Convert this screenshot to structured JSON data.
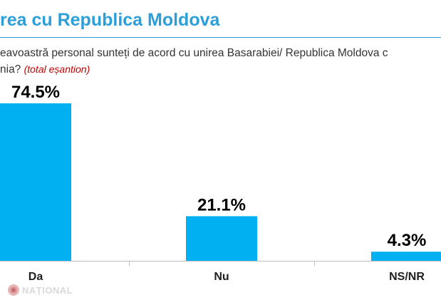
{
  "header": {
    "title": "rea cu Republica Moldova",
    "question_line1": "eavoastră personal sunteți de acord cu unirea Basarabiei/ Republica Moldova c",
    "question_line2": "nia?",
    "question_note": "(total eșantion)"
  },
  "watermark": {
    "text": "NAȚIONAL"
  },
  "colors": {
    "bar": "#00b0f0",
    "title": "#2d9fd8",
    "axis": "#bfbfbf",
    "note": "#c00000"
  },
  "chart_data": {
    "type": "bar",
    "categories": [
      "Da",
      "Nu",
      "NS/NR"
    ],
    "values": [
      74.5,
      21.1,
      4.3
    ],
    "data_labels": [
      "74.5%",
      "21.1%",
      "4.3%"
    ],
    "ylim": [
      0,
      74.5
    ],
    "grid": false,
    "legend": "none"
  }
}
